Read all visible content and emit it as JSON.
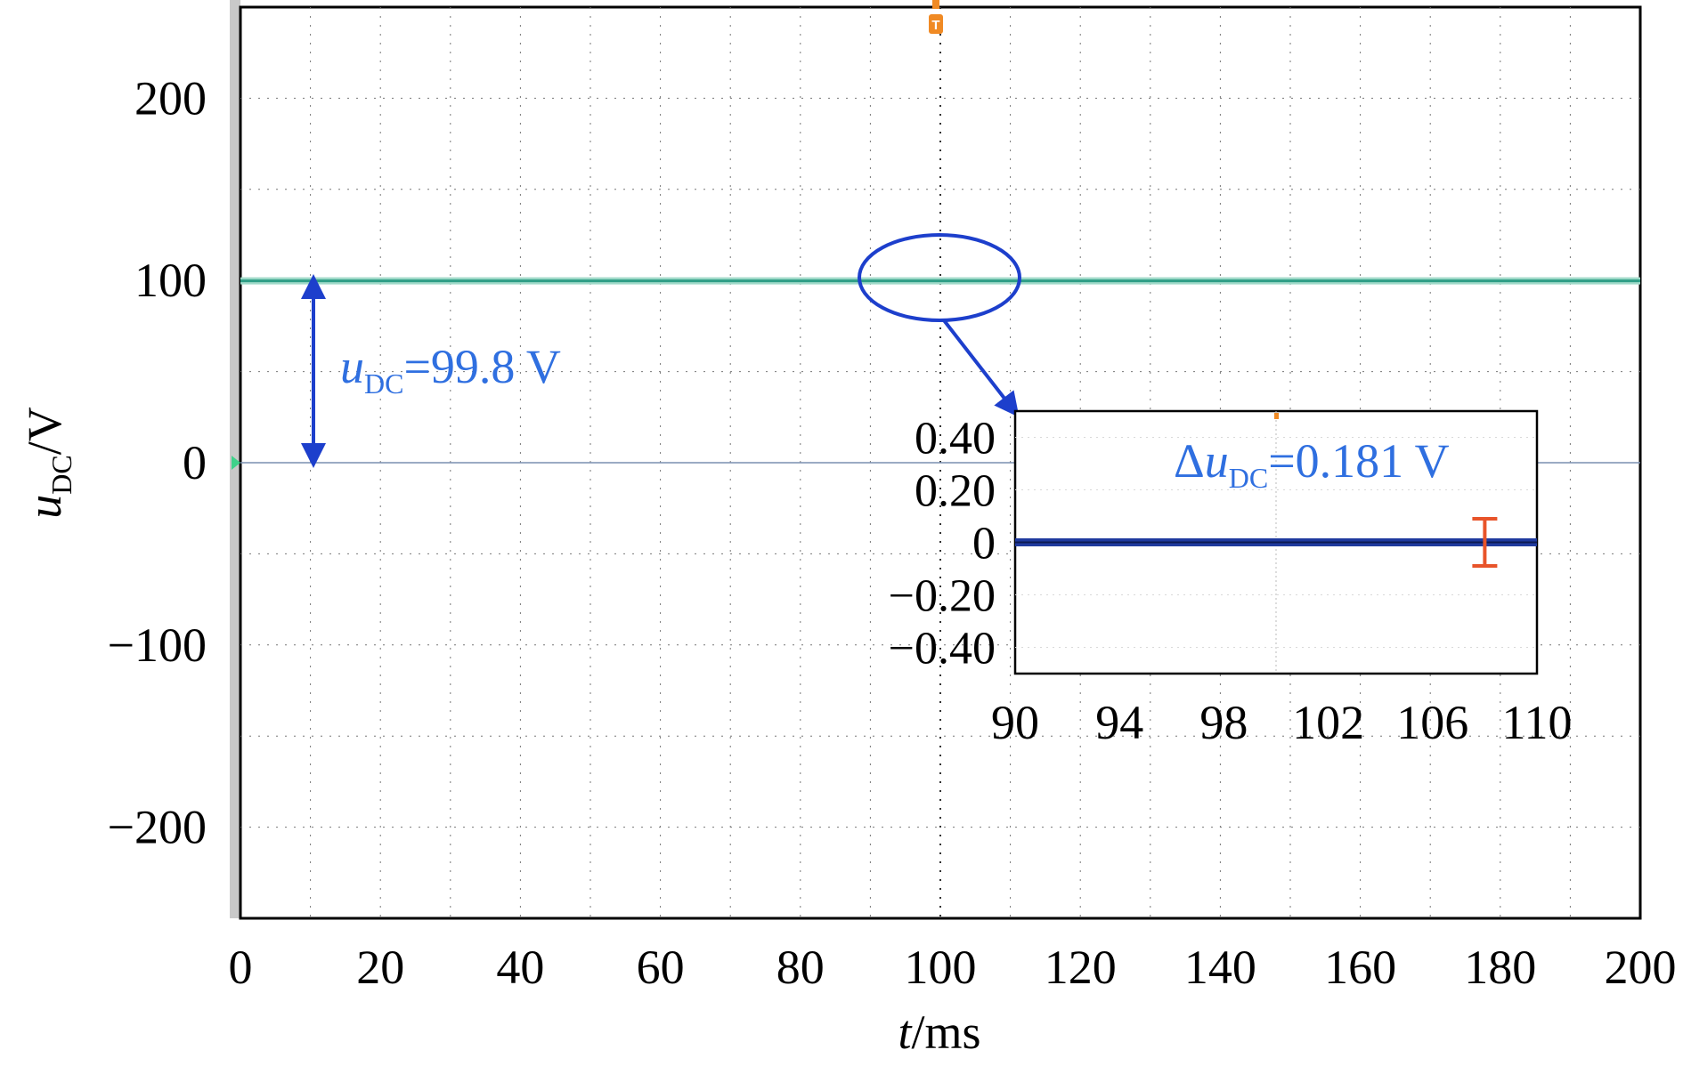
{
  "chart_data": [
    {
      "type": "line",
      "title": "",
      "xlabel": {
        "var": "t",
        "unit": "/ms"
      },
      "ylabel": {
        "var": "u",
        "sub": "DC",
        "unit": "/V"
      },
      "xlim": [
        0,
        200
      ],
      "ylim": [
        -250,
        250
      ],
      "x_ticks": [
        0,
        20,
        40,
        60,
        80,
        100,
        120,
        140,
        160,
        180,
        200
      ],
      "y_ticks": [
        -200,
        -100,
        0,
        100,
        200
      ],
      "y_tick_labels": [
        "−200",
        "−100",
        "0",
        "100",
        "200"
      ],
      "grid": true,
      "series": [
        {
          "x": [
            0,
            200
          ],
          "y": [
            99.8,
            99.8
          ],
          "color": "#2e9e86"
        }
      ],
      "annotations": {
        "level_label": {
          "var": "u",
          "sub": "DC",
          "text": "=99.8 V"
        },
        "trigger_marker": "T",
        "zoom_circle_at": {
          "x": 100,
          "y": 100
        }
      },
      "colors": {
        "trace": "#2e9e86",
        "annotation": "#2f6fe0",
        "arrow": "#1d3fcc",
        "trigger": "#f08a24"
      }
    },
    {
      "type": "line",
      "title": "",
      "xlim": [
        90,
        110
      ],
      "ylim": [
        -0.5,
        0.5
      ],
      "x_ticks": [
        90,
        94,
        98,
        102,
        106,
        110
      ],
      "y_ticks": [
        0.4,
        0.2,
        0,
        -0.2,
        -0.4
      ],
      "y_tick_labels": [
        "0.40",
        "0.20",
        "0",
        "−0.20",
        "−0.40"
      ],
      "series": [
        {
          "x": [
            90,
            92,
            94,
            96,
            98,
            100,
            102,
            104,
            106,
            108,
            110
          ],
          "y": [
            0,
            0,
            0,
            0,
            0,
            0,
            0,
            0,
            0,
            0,
            0
          ],
          "color": "#1f3a9e"
        }
      ],
      "annotations": {
        "ripple_label": {
          "prefix": "Δ",
          "var": "u",
          "sub": "DC",
          "text": "=0.181 V"
        },
        "ripple_bar": {
          "x": 108,
          "y_top": 0.09,
          "y_bottom": -0.09
        }
      },
      "colors": {
        "trace": "#1f3a9e",
        "annotation": "#2f6fe0",
        "bar": "#e8542a"
      }
    }
  ]
}
